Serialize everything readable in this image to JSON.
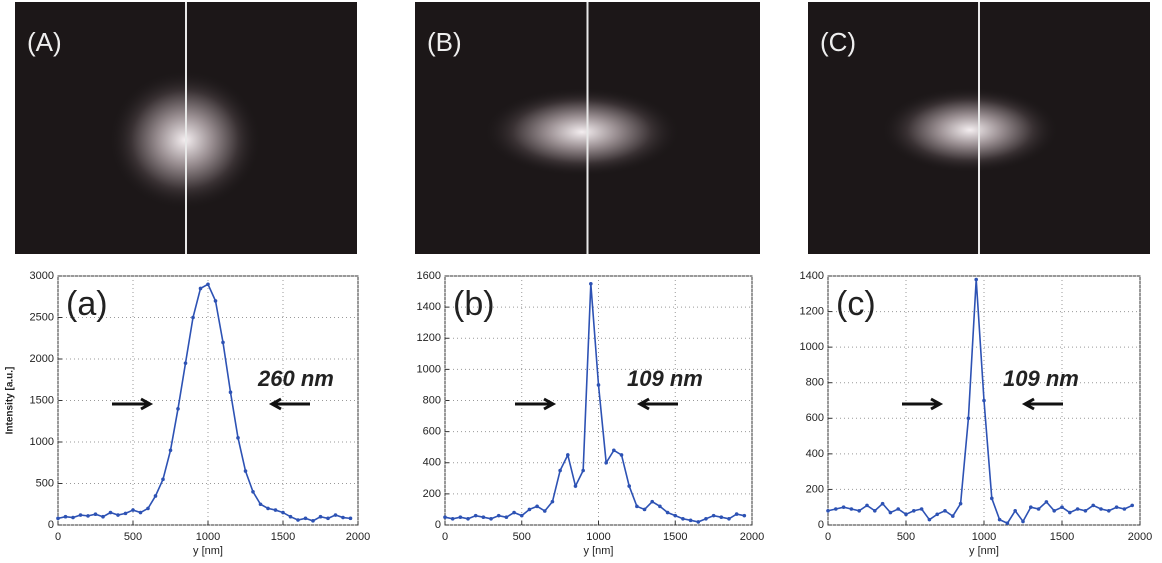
{
  "chart_data": [
    {
      "type": "line",
      "image_label": "(A)",
      "panel_label": "(a)",
      "annotation": "260 nm",
      "ylabel": "Intensity [a.u.]",
      "xlabel": "y [nm]",
      "x": [
        0,
        50,
        100,
        150,
        200,
        250,
        300,
        350,
        400,
        450,
        500,
        550,
        600,
        650,
        700,
        750,
        800,
        850,
        900,
        950,
        1000,
        1050,
        1100,
        1150,
        1200,
        1250,
        1300,
        1350,
        1400,
        1450,
        1500,
        1550,
        1600,
        1650,
        1700,
        1750,
        1800,
        1850,
        1900,
        1950
      ],
      "values": [
        80,
        100,
        90,
        120,
        110,
        130,
        100,
        150,
        120,
        140,
        180,
        150,
        200,
        350,
        550,
        900,
        1400,
        1950,
        2500,
        2850,
        2900,
        2700,
        2200,
        1600,
        1050,
        650,
        400,
        250,
        200,
        180,
        150,
        100,
        60,
        80,
        50,
        100,
        80,
        120,
        90,
        80
      ],
      "color": "#2d52b4",
      "xlim": [
        0,
        2000
      ],
      "xticks": [
        0,
        500,
        1000,
        1500,
        2000
      ],
      "ylim": [
        0,
        3000
      ],
      "yticks": [
        0,
        500,
        1000,
        1500,
        2000,
        2500,
        3000
      ],
      "grid": true
    },
    {
      "type": "line",
      "image_label": "(B)",
      "panel_label": "(b)",
      "annotation": "109 nm",
      "xlabel": "y [nm]",
      "x": [
        0,
        50,
        100,
        150,
        200,
        250,
        300,
        350,
        400,
        450,
        500,
        550,
        600,
        650,
        700,
        750,
        800,
        850,
        900,
        950,
        1000,
        1050,
        1100,
        1150,
        1200,
        1250,
        1300,
        1350,
        1400,
        1450,
        1500,
        1550,
        1600,
        1650,
        1700,
        1750,
        1800,
        1850,
        1900,
        1950
      ],
      "values": [
        50,
        40,
        50,
        40,
        60,
        50,
        40,
        60,
        50,
        80,
        60,
        100,
        120,
        90,
        150,
        350,
        450,
        250,
        350,
        1550,
        900,
        400,
        480,
        450,
        250,
        120,
        100,
        150,
        120,
        80,
        60,
        40,
        30,
        20,
        40,
        60,
        50,
        40,
        70,
        60
      ],
      "color": "#2d52b4",
      "xlim": [
        0,
        2000
      ],
      "xticks": [
        0,
        500,
        1000,
        1500,
        2000
      ],
      "ylim": [
        0,
        1600
      ],
      "yticks": [
        0,
        200,
        400,
        600,
        800,
        1000,
        1200,
        1400,
        1600
      ],
      "grid": true
    },
    {
      "type": "line",
      "image_label": "(C)",
      "panel_label": "(c)",
      "annotation": "109 nm",
      "xlabel": "y [nm]",
      "x": [
        0,
        50,
        100,
        150,
        200,
        250,
        300,
        350,
        400,
        450,
        500,
        550,
        600,
        650,
        700,
        750,
        800,
        850,
        900,
        950,
        1000,
        1050,
        1100,
        1150,
        1200,
        1250,
        1300,
        1350,
        1400,
        1450,
        1500,
        1550,
        1600,
        1650,
        1700,
        1750,
        1800,
        1850,
        1900,
        1950
      ],
      "values": [
        80,
        90,
        100,
        90,
        80,
        110,
        80,
        120,
        70,
        90,
        60,
        80,
        90,
        30,
        60,
        80,
        50,
        120,
        600,
        1380,
        700,
        150,
        30,
        10,
        80,
        20,
        100,
        90,
        130,
        80,
        100,
        70,
        90,
        80,
        110,
        90,
        80,
        100,
        90,
        110
      ],
      "color": "#2d52b4",
      "xlim": [
        0,
        2000
      ],
      "xticks": [
        0,
        500,
        1000,
        1500,
        2000
      ],
      "ylim": [
        0,
        1400
      ],
      "yticks": [
        0,
        200,
        400,
        600,
        800,
        1000,
        1200,
        1400
      ],
      "grid": true
    }
  ]
}
